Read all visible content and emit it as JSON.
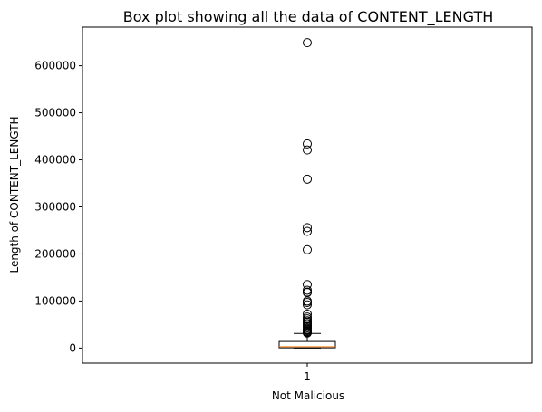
{
  "chart_data": {
    "type": "boxplot",
    "title": "Box plot showing all the data of CONTENT_LENGTH",
    "xlabel": "Not Malicious",
    "ylabel": "Length of CONTENT_LENGTH",
    "categories": [
      "1"
    ],
    "ylim": [
      -32000,
      682000
    ],
    "yticks": [
      0,
      100000,
      200000,
      300000,
      400000,
      500000,
      600000
    ],
    "ytick_labels": [
      "0",
      "100000",
      "200000",
      "300000",
      "400000",
      "500000",
      "600000"
    ],
    "grid": false,
    "box": {
      "whisker_low": 0,
      "q1": 500,
      "median": 3000,
      "q3": 14000,
      "whisker_high": 31000
    },
    "outliers": [
      649000,
      434000,
      421000,
      359000,
      256000,
      248000,
      209000,
      135000,
      123000,
      119000,
      118000,
      100000,
      97000,
      92000,
      72000,
      66000,
      62000,
      58000,
      55000,
      52000,
      49000,
      46000,
      43000,
      40000,
      38000,
      36000,
      34000,
      33000,
      32000
    ],
    "colors": {
      "box_edge": "#000000",
      "median": "#ff7f0e",
      "outlier_edge": "#000000"
    }
  }
}
